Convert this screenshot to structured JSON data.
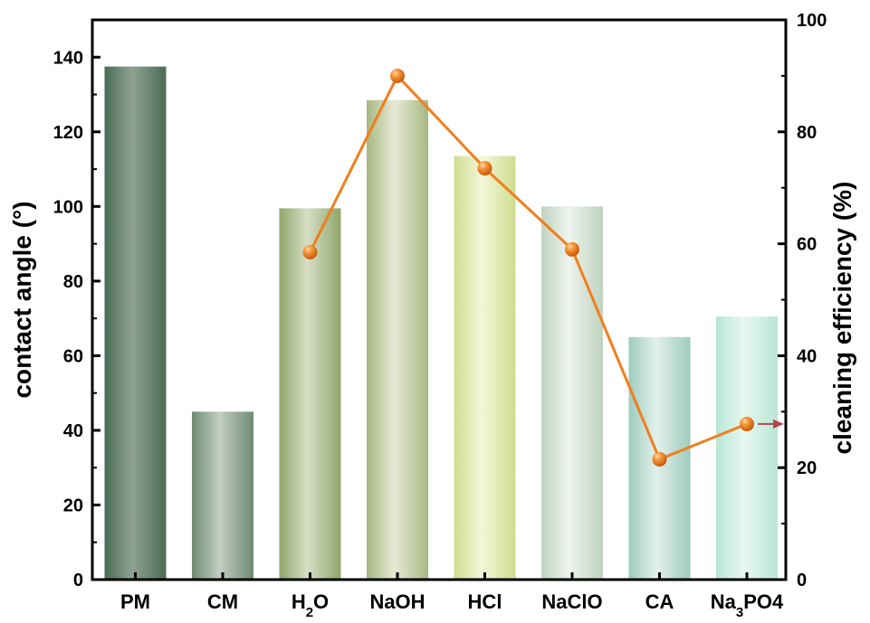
{
  "chart_data": {
    "type": "bar",
    "categories": [
      "PM",
      "CM",
      "H2O",
      "NaOH",
      "HCl",
      "NaClO",
      "CA",
      "Na3PO4"
    ],
    "category_labels": [
      {
        "base": "PM"
      },
      {
        "base": "CM"
      },
      {
        "base": "H",
        "sub": "2",
        "tail": "O"
      },
      {
        "base": "NaOH"
      },
      {
        "base": "HCl"
      },
      {
        "base": "NaClO"
      },
      {
        "base": "CA"
      },
      {
        "base": "Na",
        "sub": "3",
        "tail": "PO4"
      }
    ],
    "series": [
      {
        "kind": "bar",
        "axis": "left",
        "values": [
          137.5,
          45,
          99.5,
          128.5,
          113.5,
          100,
          65,
          70.5
        ],
        "colors": [
          [
            "#4a6b55",
            "#8fa394"
          ],
          [
            "#6f8b72",
            "#c3cfc3"
          ],
          [
            "#8fa66a",
            "#d7dfc6"
          ],
          [
            "#a8b882",
            "#e6ead5"
          ],
          [
            "#cfdc8f",
            "#f3f7d9"
          ],
          [
            "#bfd3bf",
            "#eef4ee"
          ],
          [
            "#9ecbbd",
            "#e2f1ec"
          ],
          [
            "#b7e6d4",
            "#e9f8f2"
          ]
        ]
      },
      {
        "kind": "line",
        "axis": "right",
        "color": "#f07f1e",
        "values": [
          null,
          null,
          58.5,
          90,
          73.5,
          59,
          21.5,
          27.8
        ]
      }
    ],
    "left_axis": {
      "label": "contact angle (°)",
      "ylim": [
        0,
        150
      ],
      "ticks": [
        0,
        20,
        40,
        60,
        80,
        100,
        120,
        140
      ]
    },
    "right_axis": {
      "label": "cleaning efficiency (%)",
      "ylim": [
        0,
        100
      ],
      "ticks": [
        0,
        20,
        40,
        60,
        80,
        100
      ]
    },
    "annotation": {
      "type": "arrow-right",
      "color": "#b5474f",
      "at_category": "Na3PO4"
    }
  }
}
